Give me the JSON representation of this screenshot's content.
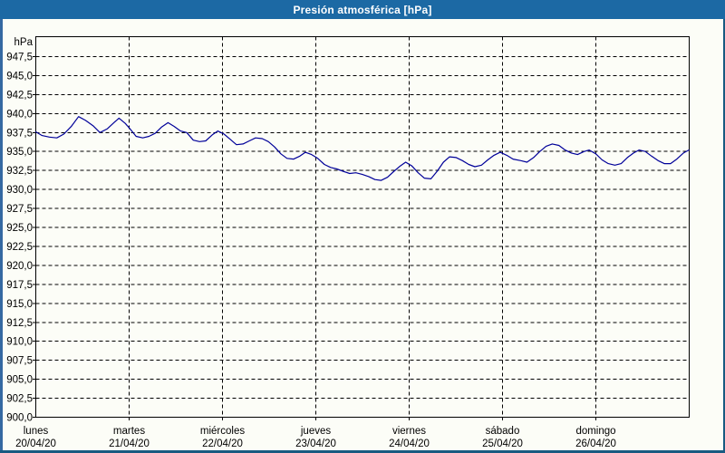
{
  "window": {
    "title": "Presión atmosférica [hPa]"
  },
  "colors": {
    "titlebar_bg": "#1c69a4",
    "title_text": "#ffffff",
    "page_bg": "#fcfdf7",
    "border_left": "#3569a2",
    "border_right": "#185a81",
    "border_bottom": "#185a81",
    "frame": "#000000",
    "grid": "#000000",
    "label_text": "#000000",
    "line": "#000099"
  },
  "chart_data": {
    "type": "line",
    "title": "Presión atmosférica [hPa]",
    "ylabel": "hPa",
    "grid": "dashed",
    "legend": "none",
    "y_axis": {
      "min": 900,
      "max": 950,
      "tick_step": 2.5,
      "tick_values": [
        947.5,
        945.0,
        942.5,
        940.0,
        937.5,
        935.0,
        932.5,
        930.0,
        927.5,
        925.0,
        922.5,
        920.0,
        917.5,
        915.0,
        912.5,
        910.0,
        907.5,
        905.0,
        902.5,
        900.0
      ],
      "tick_labels": [
        "947,5",
        "945,0",
        "942,5",
        "940,0",
        "937,5",
        "935,0",
        "932,5",
        "930,0",
        "927,5",
        "925,0",
        "922,5",
        "920,0",
        "917,5",
        "915,0",
        "912,5",
        "910,0",
        "907,5",
        "905,0",
        "902,5",
        "900,0"
      ],
      "unit_label": "hPa"
    },
    "x_axis": {
      "total_hours": 168,
      "day_boundary_hours": [
        24,
        48,
        72,
        96,
        120,
        144
      ],
      "days": [
        {
          "name": "lunes",
          "date": "20/04/20",
          "start_hour": 0
        },
        {
          "name": "martes",
          "date": "21/04/20",
          "start_hour": 24
        },
        {
          "name": "miércoles",
          "date": "22/04/20",
          "start_hour": 48
        },
        {
          "name": "jueves",
          "date": "23/04/20",
          "start_hour": 72
        },
        {
          "name": "viernes",
          "date": "24/04/20",
          "start_hour": 96
        },
        {
          "name": "sábado",
          "date": "25/04/20",
          "start_hour": 120
        },
        {
          "name": "domingo",
          "date": "26/04/20",
          "start_hour": 144
        }
      ]
    },
    "series": [
      {
        "name": "Presión atmosférica",
        "color": "#000099",
        "points": [
          [
            0,
            937.6
          ],
          [
            1.6,
            937.1
          ],
          [
            3.5,
            936.9
          ],
          [
            5.4,
            936.8
          ],
          [
            7.2,
            937.3
          ],
          [
            9.1,
            938.3
          ],
          [
            11,
            939.6
          ],
          [
            12.8,
            939.1
          ],
          [
            14.7,
            938.4
          ],
          [
            16.5,
            937.5
          ],
          [
            18.4,
            938.0
          ],
          [
            20.3,
            938.9
          ],
          [
            21.4,
            939.4
          ],
          [
            23,
            938.7
          ],
          [
            24.2,
            938.0
          ],
          [
            25.8,
            937.0
          ],
          [
            27.5,
            936.8
          ],
          [
            29.1,
            937.0
          ],
          [
            30.7,
            937.4
          ],
          [
            32.3,
            938.2
          ],
          [
            34,
            938.8
          ],
          [
            35.6,
            938.3
          ],
          [
            37.2,
            937.7
          ],
          [
            38.8,
            937.5
          ],
          [
            40.5,
            936.5
          ],
          [
            42.1,
            936.3
          ],
          [
            43.7,
            936.4
          ],
          [
            45.4,
            937.2
          ],
          [
            46.8,
            937.7
          ],
          [
            48.4,
            937.3
          ],
          [
            50,
            936.6
          ],
          [
            51.6,
            935.9
          ],
          [
            53.3,
            936.0
          ],
          [
            54.9,
            936.4
          ],
          [
            56.5,
            936.8
          ],
          [
            58.2,
            936.7
          ],
          [
            59.8,
            936.3
          ],
          [
            61.4,
            935.6
          ],
          [
            63,
            934.7
          ],
          [
            64.6,
            934.1
          ],
          [
            66.3,
            934.0
          ],
          [
            67.9,
            934.4
          ],
          [
            69.3,
            934.9
          ],
          [
            70.9,
            934.6
          ],
          [
            72.5,
            934.1
          ],
          [
            74.2,
            933.3
          ],
          [
            75.8,
            932.9
          ],
          [
            77.4,
            932.7
          ],
          [
            79,
            932.4
          ],
          [
            80.7,
            932.1
          ],
          [
            82.3,
            932.2
          ],
          [
            83.9,
            932.0
          ],
          [
            85.6,
            931.7
          ],
          [
            87.2,
            931.3
          ],
          [
            88.8,
            931.2
          ],
          [
            90.4,
            931.6
          ],
          [
            92.1,
            932.4
          ],
          [
            93.7,
            933.1
          ],
          [
            95.1,
            933.6
          ],
          [
            96.7,
            933.1
          ],
          [
            98.3,
            932.2
          ],
          [
            99.9,
            931.5
          ],
          [
            101.6,
            931.4
          ],
          [
            103.2,
            932.4
          ],
          [
            104.8,
            933.6
          ],
          [
            106.4,
            934.3
          ],
          [
            108.1,
            934.2
          ],
          [
            109.7,
            933.8
          ],
          [
            111.3,
            933.3
          ],
          [
            112.9,
            933.0
          ],
          [
            114.6,
            933.2
          ],
          [
            116.2,
            933.9
          ],
          [
            117.8,
            934.5
          ],
          [
            119.4,
            934.9
          ],
          [
            121.1,
            934.5
          ],
          [
            122.7,
            934.0
          ],
          [
            124.7,
            933.8
          ],
          [
            126.3,
            933.6
          ],
          [
            128,
            934.2
          ],
          [
            129.6,
            935.0
          ],
          [
            131.2,
            935.7
          ],
          [
            132.8,
            936.0
          ],
          [
            134.5,
            935.8
          ],
          [
            136.1,
            935.2
          ],
          [
            137.7,
            934.8
          ],
          [
            139.3,
            934.6
          ],
          [
            141,
            935.0
          ],
          [
            142.3,
            935.2
          ],
          [
            144,
            934.7
          ],
          [
            145.6,
            933.9
          ],
          [
            147.2,
            933.4
          ],
          [
            148.9,
            933.2
          ],
          [
            150.5,
            933.4
          ],
          [
            152.1,
            934.2
          ],
          [
            153.7,
            934.8
          ],
          [
            155.1,
            935.2
          ],
          [
            156.7,
            935.0
          ],
          [
            158.3,
            934.4
          ],
          [
            160,
            933.8
          ],
          [
            161.6,
            933.4
          ],
          [
            163.2,
            933.4
          ],
          [
            164.8,
            934.0
          ],
          [
            166.5,
            934.8
          ],
          [
            167.9,
            935.2
          ]
        ]
      }
    ]
  }
}
